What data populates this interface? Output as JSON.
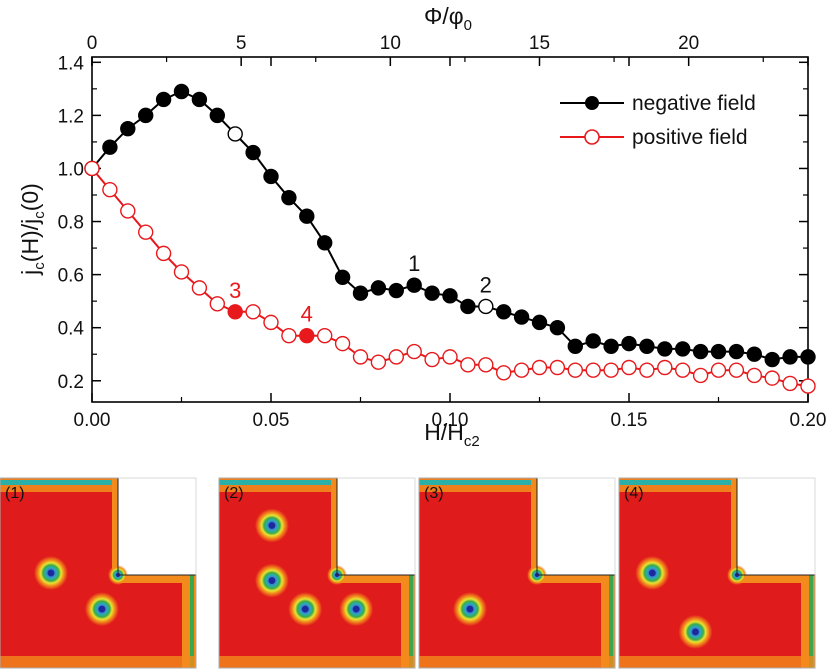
{
  "chart_data": {
    "type": "line",
    "title": "",
    "xlabel": "H/H",
    "xlabel_sub": "c2",
    "ylabel_parts": [
      "j",
      "c",
      "(H)/j",
      "c",
      "(0)"
    ],
    "top_xlabel": "Φ/φ",
    "top_xlabel_sub": "0",
    "xlim": [
      0.0,
      0.2
    ],
    "ylim": [
      0.12,
      1.42
    ],
    "top_xlim": [
      0,
      24
    ],
    "x_ticks": [
      0.0,
      0.05,
      0.1,
      0.15,
      0.2
    ],
    "x_tick_labels": [
      "0.00",
      "0.05",
      "0.10",
      "0.15",
      "0.20"
    ],
    "y_ticks": [
      0.2,
      0.4,
      0.6,
      0.8,
      1.0,
      1.2,
      1.4
    ],
    "y_tick_labels": [
      "0.2",
      "0.4",
      "0.6",
      "0.8",
      "1.0",
      "1.2",
      "1.4"
    ],
    "top_ticks": [
      0,
      5,
      10,
      15,
      20
    ],
    "top_tick_labels": [
      "0",
      "5",
      "10",
      "15",
      "20"
    ],
    "grid": false,
    "legend_position": "top-right",
    "series": [
      {
        "name": "negative field",
        "color": "#000000",
        "marker": "filled-circle",
        "x": [
          0.0,
          0.005,
          0.01,
          0.015,
          0.02,
          0.025,
          0.03,
          0.035,
          0.04,
          0.045,
          0.05,
          0.055,
          0.06,
          0.065,
          0.07,
          0.075,
          0.08,
          0.085,
          0.09,
          0.095,
          0.1,
          0.105,
          0.11,
          0.115,
          0.12,
          0.125,
          0.13,
          0.135,
          0.14,
          0.145,
          0.15,
          0.155,
          0.16,
          0.165,
          0.17,
          0.175,
          0.18,
          0.185,
          0.19,
          0.195,
          0.2
        ],
        "y": [
          1.0,
          1.08,
          1.15,
          1.2,
          1.26,
          1.29,
          1.26,
          1.2,
          1.13,
          1.06,
          0.97,
          0.89,
          0.82,
          0.72,
          0.59,
          0.53,
          0.55,
          0.54,
          0.56,
          0.53,
          0.52,
          0.48,
          0.48,
          0.46,
          0.44,
          0.42,
          0.4,
          0.33,
          0.35,
          0.33,
          0.34,
          0.33,
          0.32,
          0.32,
          0.31,
          0.31,
          0.31,
          0.3,
          0.28,
          0.29,
          0.29
        ],
        "open_points": [
          8,
          22
        ]
      },
      {
        "name": "positive field",
        "color": "#e8191c",
        "marker": "open-circle",
        "x": [
          0.0,
          0.005,
          0.01,
          0.015,
          0.02,
          0.025,
          0.03,
          0.035,
          0.04,
          0.045,
          0.05,
          0.055,
          0.06,
          0.065,
          0.07,
          0.075,
          0.08,
          0.085,
          0.09,
          0.095,
          0.1,
          0.105,
          0.11,
          0.115,
          0.12,
          0.125,
          0.13,
          0.135,
          0.14,
          0.145,
          0.15,
          0.155,
          0.16,
          0.165,
          0.17,
          0.175,
          0.18,
          0.185,
          0.19,
          0.195,
          0.2
        ],
        "y": [
          1.0,
          0.92,
          0.84,
          0.76,
          0.68,
          0.61,
          0.55,
          0.49,
          0.46,
          0.46,
          0.42,
          0.37,
          0.37,
          0.37,
          0.34,
          0.29,
          0.27,
          0.29,
          0.31,
          0.28,
          0.29,
          0.26,
          0.26,
          0.23,
          0.24,
          0.25,
          0.25,
          0.24,
          0.24,
          0.24,
          0.25,
          0.24,
          0.25,
          0.24,
          0.22,
          0.24,
          0.24,
          0.22,
          0.21,
          0.19,
          0.18
        ],
        "filled_points": [
          8,
          12
        ]
      }
    ],
    "annotations": [
      {
        "text": "1",
        "x": 0.09,
        "y": 0.56,
        "color": "#111111"
      },
      {
        "text": "2",
        "x": 0.11,
        "y": 0.48,
        "color": "#111111"
      },
      {
        "text": "3",
        "x": 0.04,
        "y": 0.46,
        "color": "#e8191c"
      },
      {
        "text": "4",
        "x": 0.06,
        "y": 0.37,
        "color": "#e8191c"
      }
    ]
  },
  "panels": [
    {
      "label": "(1)",
      "vortices": [
        [
          0.26,
          0.5
        ],
        [
          0.52,
          0.69
        ]
      ]
    },
    {
      "label": "(2)",
      "vortices": [
        [
          0.27,
          0.25
        ],
        [
          0.27,
          0.54
        ],
        [
          0.44,
          0.69
        ],
        [
          0.7,
          0.69
        ]
      ]
    },
    {
      "label": "(3)",
      "vortices": [
        [
          0.26,
          0.69
        ]
      ]
    },
    {
      "label": "(4)",
      "vortices": [
        [
          0.17,
          0.5
        ],
        [
          0.39,
          0.81
        ]
      ]
    }
  ]
}
